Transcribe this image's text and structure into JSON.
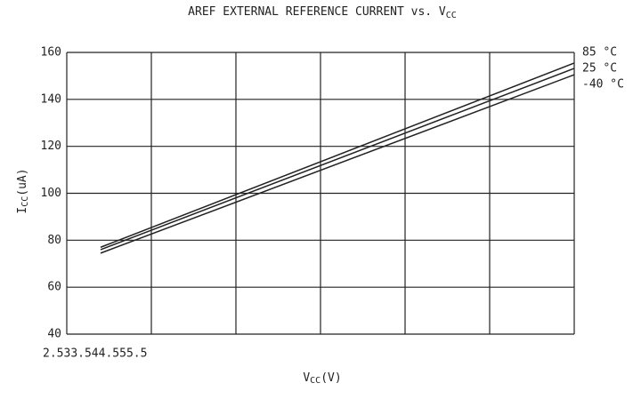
{
  "chart_data": {
    "type": "line",
    "title": "AREF EXTERNAL REFERENCE CURRENT vs. V",
    "title_sub": "CC",
    "x_label": "V",
    "x_label_sub": "CC",
    "x_label_unit": "(V)",
    "y_label": "I",
    "y_label_sub": "CC",
    "y_label_unit": "(uA)",
    "x": [
      2.7,
      5.5
    ],
    "series": [
      {
        "name": "85 °C",
        "color": "#222222",
        "values": [
          77,
          155.5
        ]
      },
      {
        "name": "25 °C",
        "color": "#222222",
        "values": [
          76,
          153.2
        ]
      },
      {
        "name": "-40 °C",
        "color": "#222222",
        "values": [
          74.5,
          150.5
        ]
      }
    ],
    "xlim": [
      2.5,
      5.5
    ],
    "xticks": [
      2.5,
      3,
      3.5,
      4,
      4.5,
      5,
      5.5
    ],
    "ylim": [
      40,
      160
    ],
    "yticks": [
      40,
      60,
      80,
      100,
      120,
      140,
      160
    ],
    "grid": true
  }
}
